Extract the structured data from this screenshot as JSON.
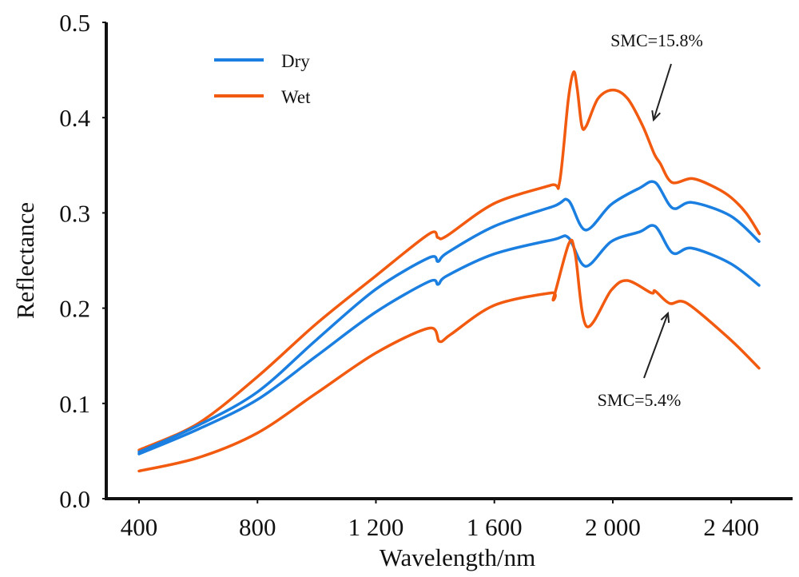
{
  "chart_data": {
    "type": "line",
    "title": "",
    "xlabel": "Wavelength/nm",
    "ylabel": "Reflectance",
    "xlim": [
      290,
      2530
    ],
    "ylim": [
      0.0,
      0.5
    ],
    "grid": false,
    "x_ticks": [
      400,
      800,
      1200,
      1600,
      2000,
      2400
    ],
    "x_tick_labels": [
      "400",
      "800",
      "1 200",
      "1 600",
      "2 000",
      "2 400"
    ],
    "y_ticks": [
      0.0,
      0.1,
      0.2,
      0.3,
      0.4,
      0.5
    ],
    "y_tick_labels": [
      "0.0",
      "0.1",
      "0.2",
      "0.3",
      "0.4",
      "0.5"
    ],
    "legend": {
      "position": "top-left",
      "entries": [
        {
          "label": "Dry",
          "color": "#1a7fe0"
        },
        {
          "label": "Wet",
          "color": "#f25a10"
        }
      ]
    },
    "series": [
      {
        "name": "Wet (SMC=15.8%)",
        "legend_group": "Wet",
        "color": "#f25a10",
        "x": [
          400,
          600,
          800,
          1000,
          1200,
          1380,
          1410,
          1440,
          1600,
          1790,
          1820,
          1850,
          1868,
          1880,
          1895,
          1910,
          1950,
          2000,
          2050,
          2100,
          2140,
          2160,
          2200,
          2270,
          2350,
          2400,
          2450,
          2495
        ],
        "y": [
          0.051,
          0.079,
          0.128,
          0.184,
          0.234,
          0.278,
          0.274,
          0.276,
          0.31,
          0.329,
          0.332,
          0.42,
          0.448,
          0.43,
          0.392,
          0.391,
          0.42,
          0.429,
          0.42,
          0.392,
          0.362,
          0.352,
          0.332,
          0.336,
          0.326,
          0.316,
          0.3,
          0.278
        ]
      },
      {
        "name": "Dry (upper)",
        "legend_group": "Dry",
        "color": "#1a7fe0",
        "x": [
          400,
          600,
          800,
          1000,
          1200,
          1380,
          1410,
          1440,
          1600,
          1800,
          1850,
          1908,
          1995,
          2090,
          2143,
          2202,
          2267,
          2397,
          2494
        ],
        "y": [
          0.049,
          0.077,
          0.112,
          0.167,
          0.22,
          0.253,
          0.249,
          0.258,
          0.286,
          0.307,
          0.313,
          0.282,
          0.309,
          0.326,
          0.332,
          0.305,
          0.311,
          0.297,
          0.27
        ]
      },
      {
        "name": "Dry (lower)",
        "legend_group": "Dry",
        "color": "#1a7fe0",
        "x": [
          400,
          600,
          800,
          1000,
          1200,
          1380,
          1410,
          1440,
          1600,
          1800,
          1850,
          1908,
          1995,
          2090,
          2143,
          2202,
          2267,
          2397,
          2494
        ],
        "y": [
          0.047,
          0.073,
          0.104,
          0.15,
          0.196,
          0.228,
          0.225,
          0.234,
          0.257,
          0.272,
          0.274,
          0.244,
          0.27,
          0.28,
          0.286,
          0.258,
          0.263,
          0.247,
          0.224
        ]
      },
      {
        "name": "Wet (SMC=5.4%)",
        "legend_group": "Wet",
        "color": "#f25a10",
        "x": [
          400,
          600,
          800,
          1000,
          1200,
          1380,
          1415,
          1455,
          1600,
          1792,
          1800,
          1852,
          1873,
          1911,
          1995,
          2049,
          2130,
          2143,
          2192,
          2251,
          2397,
          2494
        ],
        "y": [
          0.029,
          0.043,
          0.069,
          0.111,
          0.153,
          0.179,
          0.165,
          0.173,
          0.203,
          0.216,
          0.211,
          0.268,
          0.257,
          0.181,
          0.219,
          0.229,
          0.216,
          0.218,
          0.205,
          0.205,
          0.167,
          0.137
        ]
      }
    ],
    "annotations": [
      {
        "text": "SMC=15.8%",
        "points_to": {
          "x": 2140,
          "y": 0.395
        },
        "label_at": {
          "x": 2250,
          "y": 0.48
        }
      },
      {
        "text": "SMC=5.4%",
        "points_to": {
          "x": 2180,
          "y": 0.2
        },
        "label_at": {
          "x": 2130,
          "y": 0.1
        }
      }
    ]
  }
}
